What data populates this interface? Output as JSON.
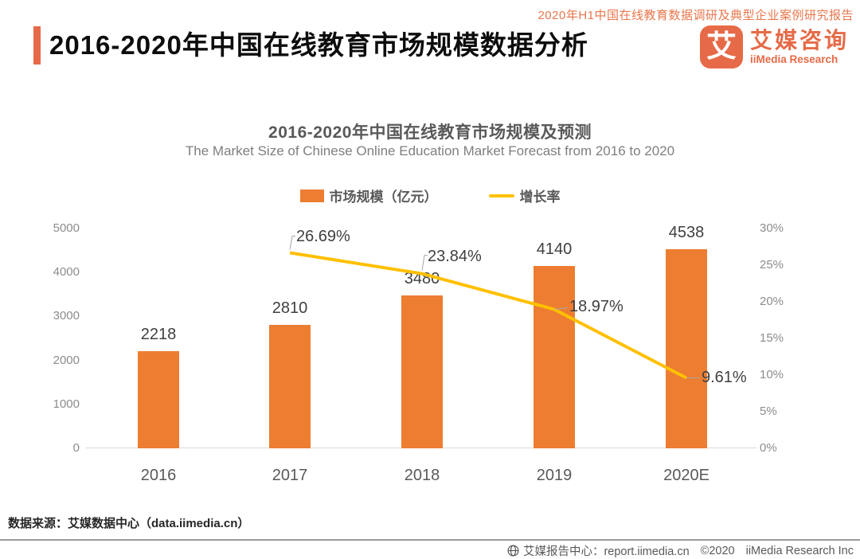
{
  "header": {
    "report_tag": "2020年H1中国在线教育数据调研及典型企业案例研究报告",
    "title": "2016-2020年中国在线教育市场规模数据分析",
    "logo": {
      "mark": "艾",
      "name_cn": "艾媒咨询",
      "name_en": "iiMedia Research"
    }
  },
  "chart_data": {
    "type": "bar",
    "title": "2016-2020年中国在线教育市场规模及预测",
    "subtitle": "The Market Size of Chinese Online Education Market Forecast from 2016 to 2020",
    "categories": [
      "2016",
      "2017",
      "2018",
      "2019",
      "2020E"
    ],
    "series": [
      {
        "name": "市场规模（亿元）",
        "type": "bar",
        "axis": "left",
        "values": [
          2218,
          2810,
          3480,
          4140,
          4538
        ]
      },
      {
        "name": "增长率",
        "type": "line",
        "axis": "right",
        "values": [
          null,
          26.69,
          23.84,
          18.97,
          9.61
        ],
        "labels": [
          "",
          "26.69%",
          "23.84%",
          "18.97%",
          "9.61%"
        ]
      }
    ],
    "left_axis": {
      "ticks": [
        "0",
        "1000",
        "2000",
        "3000",
        "4000",
        "5000"
      ],
      "max": 5000
    },
    "right_axis": {
      "ticks": [
        "0%",
        "5%",
        "10%",
        "15%",
        "20%",
        "25%",
        "30%"
      ],
      "max": 30
    },
    "legend_position": "top",
    "grid": false
  },
  "footer": {
    "source": "数据来源：艾媒数据中心（data.iimedia.cn）",
    "center_label": "艾媒报告中心：report.iimedia.cn",
    "copyright": "©2020",
    "company": "iiMedia Research  Inc"
  },
  "colors": {
    "accent": "#E66A47",
    "tag": "#E8764C",
    "bar": "#ED7D31",
    "line": "#FFC000"
  }
}
